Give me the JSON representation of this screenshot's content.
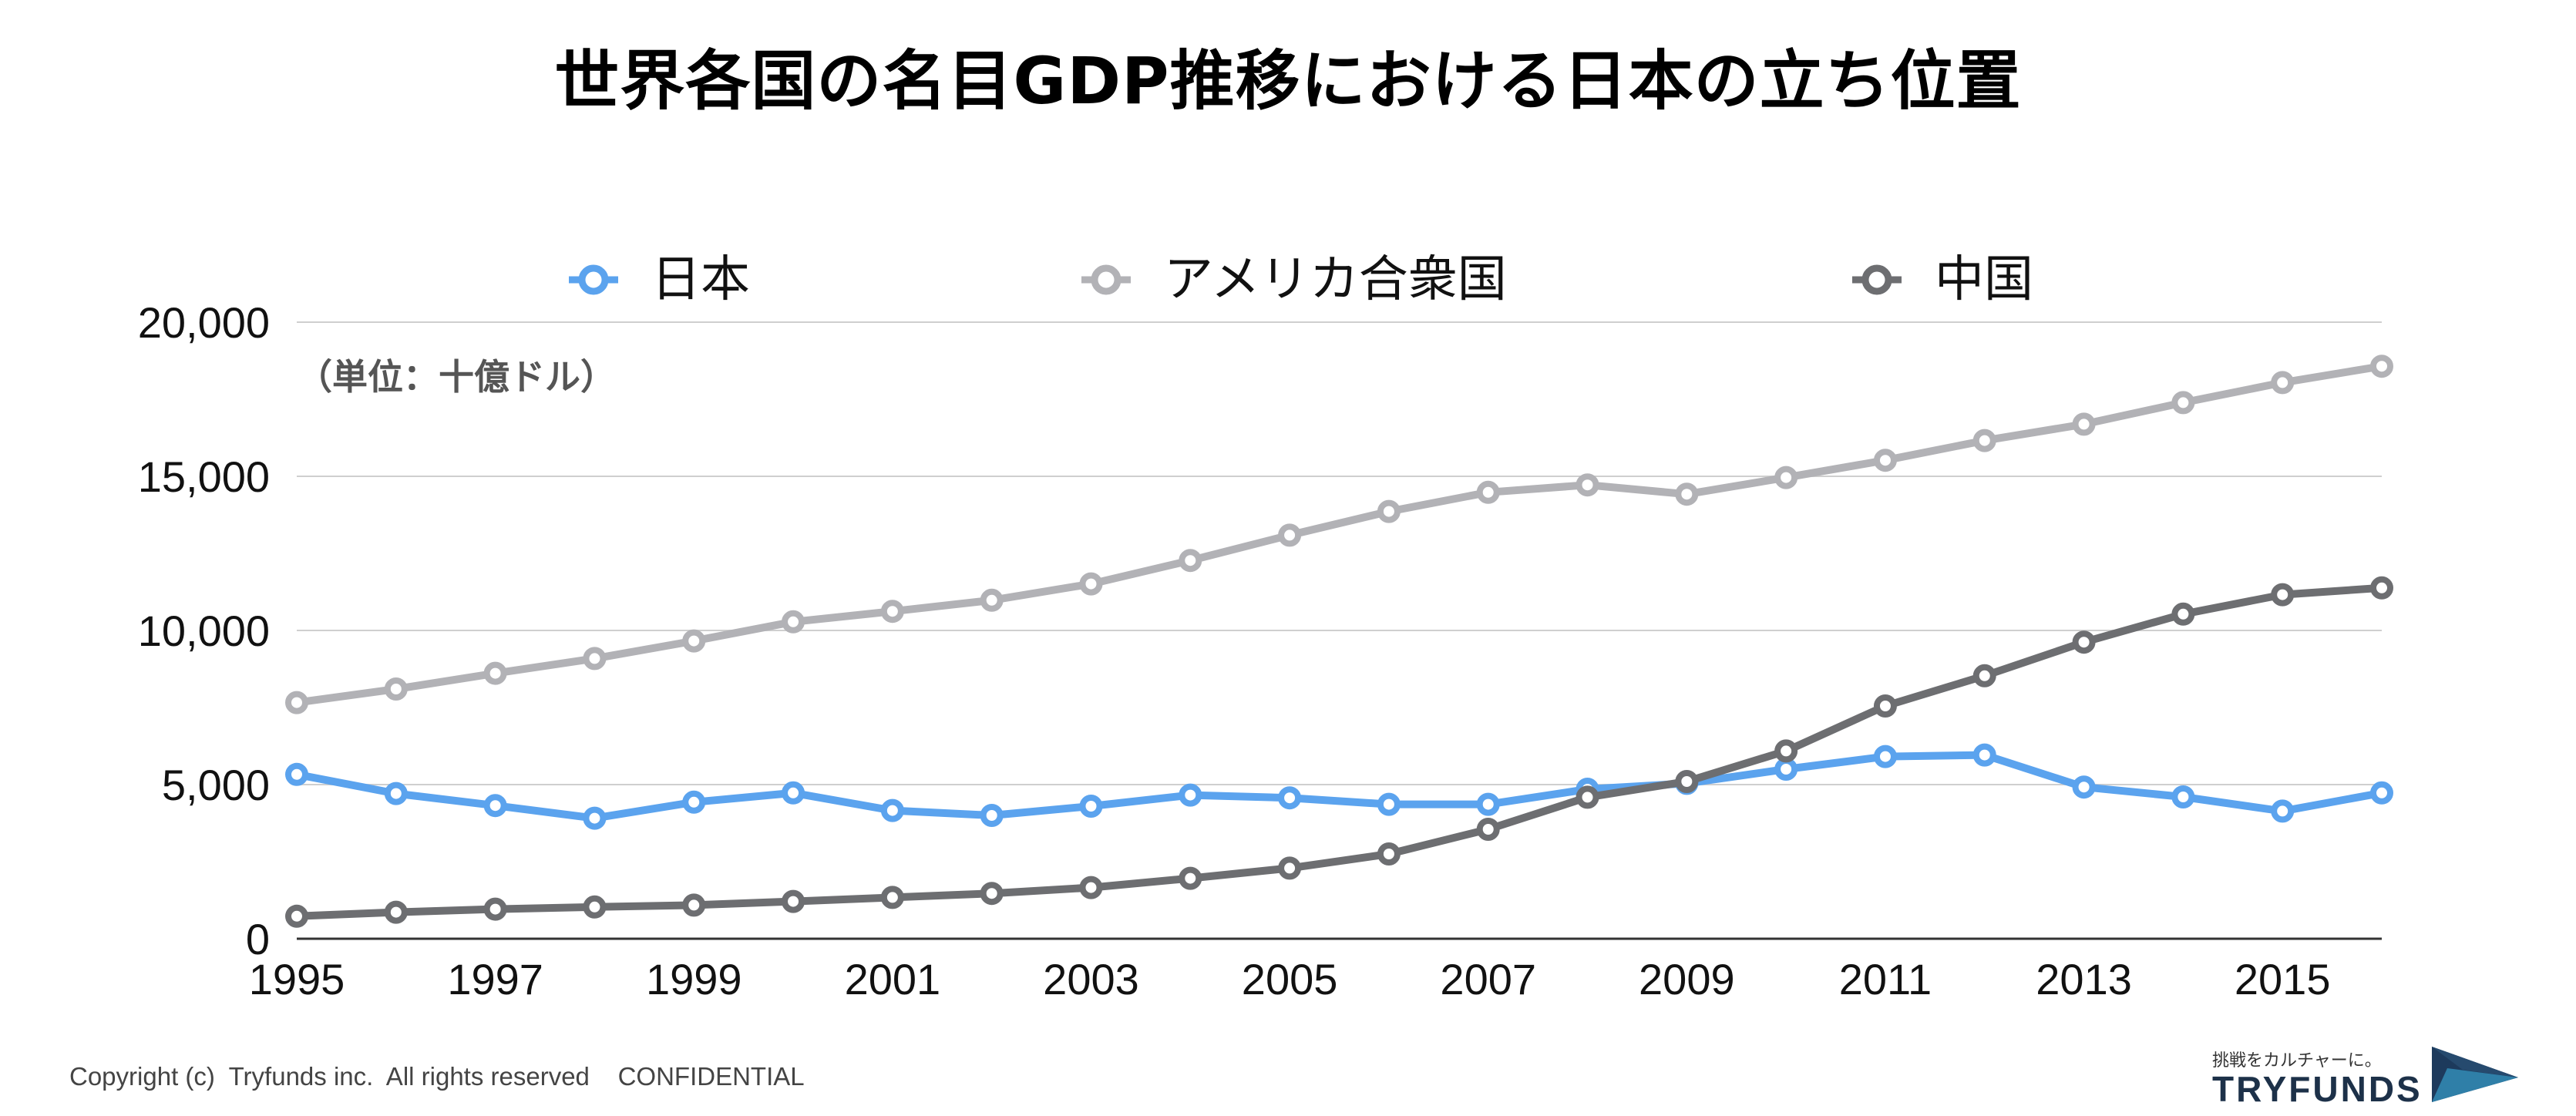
{
  "title": "世界各国の名目GDP推移における日本の立ち位置",
  "footer": {
    "copyright": "Copyright (c)  Tryfunds inc.  All rights reserved    CONFIDENTIAL",
    "brand_tagline": "挑戦をカルチャーに。",
    "brand_name": "TRYFUNDS"
  },
  "chart_data": {
    "type": "line",
    "unit_label": "（単位：十億ドル）",
    "ylim": [
      0,
      20000
    ],
    "yticks": [
      0,
      5000,
      10000,
      15000,
      20000
    ],
    "ytick_labels": [
      "0",
      "5,000",
      "10,000",
      "15,000",
      "20,000"
    ],
    "x": [
      1995,
      1996,
      1997,
      1998,
      1999,
      2000,
      2001,
      2002,
      2003,
      2004,
      2005,
      2006,
      2007,
      2008,
      2009,
      2010,
      2011,
      2012,
      2013,
      2014,
      2015,
      2016
    ],
    "xtick_labels": [
      "1995",
      "1997",
      "1999",
      "2001",
      "2003",
      "2005",
      "2007",
      "2009",
      "2011",
      "2013",
      "2015"
    ],
    "grid": true,
    "legend_position": "top",
    "series": [
      {
        "name": "日本",
        "color": "#5ba3ee",
        "values": [
          5330,
          4710,
          4320,
          3910,
          4430,
          4730,
          4160,
          4000,
          4300,
          4660,
          4570,
          4360,
          4360,
          4850,
          5040,
          5500,
          5910,
          5960,
          4920,
          4600,
          4140,
          4730
        ]
      },
      {
        "name": "アメリカ合衆国",
        "color": "#b2b2b6",
        "values": [
          7660,
          8100,
          8610,
          9090,
          9660,
          10280,
          10620,
          10980,
          11510,
          12270,
          13090,
          13860,
          14480,
          14720,
          14420,
          14960,
          15520,
          16160,
          16690,
          17390,
          18040,
          18570
        ]
      },
      {
        "name": "中国",
        "color": "#6d6e71",
        "values": [
          730,
          860,
          960,
          1030,
          1090,
          1210,
          1340,
          1470,
          1660,
          1960,
          2290,
          2750,
          3550,
          4590,
          5100,
          6090,
          7550,
          8530,
          9620,
          10530,
          11160,
          11380
        ]
      }
    ]
  }
}
